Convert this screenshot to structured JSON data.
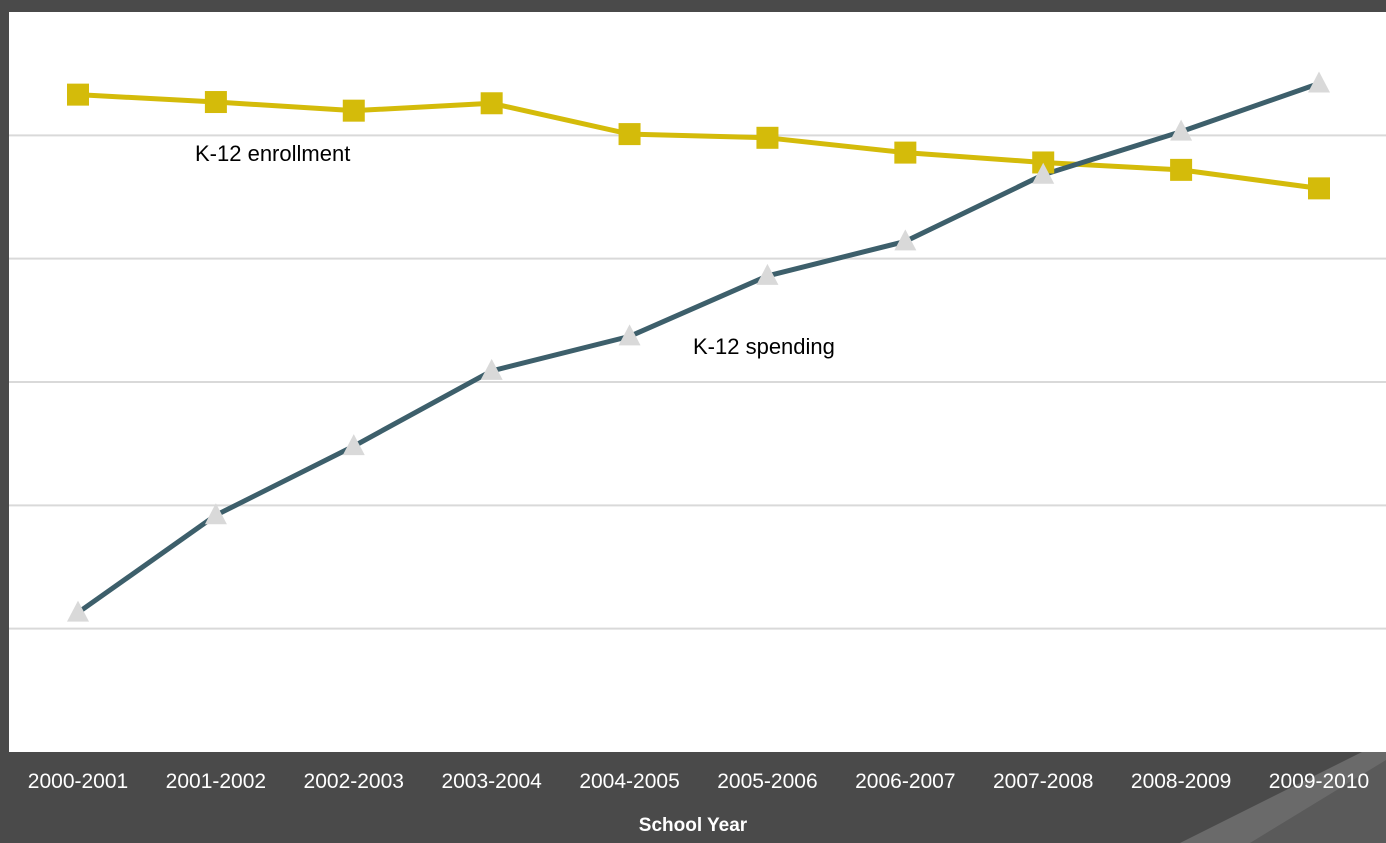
{
  "chart_data": {
    "type": "line",
    "title": "",
    "xlabel": "School  Year",
    "ylabel": "",
    "categories": [
      "2000-2001",
      "2001-2002",
      "2002-2003",
      "2003-2004",
      "2004-2005",
      "2005-2006",
      "2006-2007",
      "2007-2008",
      "2008-2009",
      "2009-2010"
    ],
    "ylim": [
      0,
      6
    ],
    "grid": true,
    "series": [
      {
        "name": "K-12 enrollment",
        "color": "#d4bb0a",
        "marker": "square",
        "values": [
          5.33,
          5.27,
          5.2,
          5.26,
          5.01,
          4.98,
          4.86,
          4.78,
          4.72,
          4.57
        ]
      },
      {
        "name": "K-12 spending",
        "color": "#3d5f6b",
        "marker_color": "#d9d9d9",
        "marker": "triangle",
        "values": [
          1.13,
          1.92,
          2.48,
          3.09,
          3.37,
          3.86,
          4.14,
          4.68,
          5.03,
          5.42
        ]
      }
    ]
  }
}
